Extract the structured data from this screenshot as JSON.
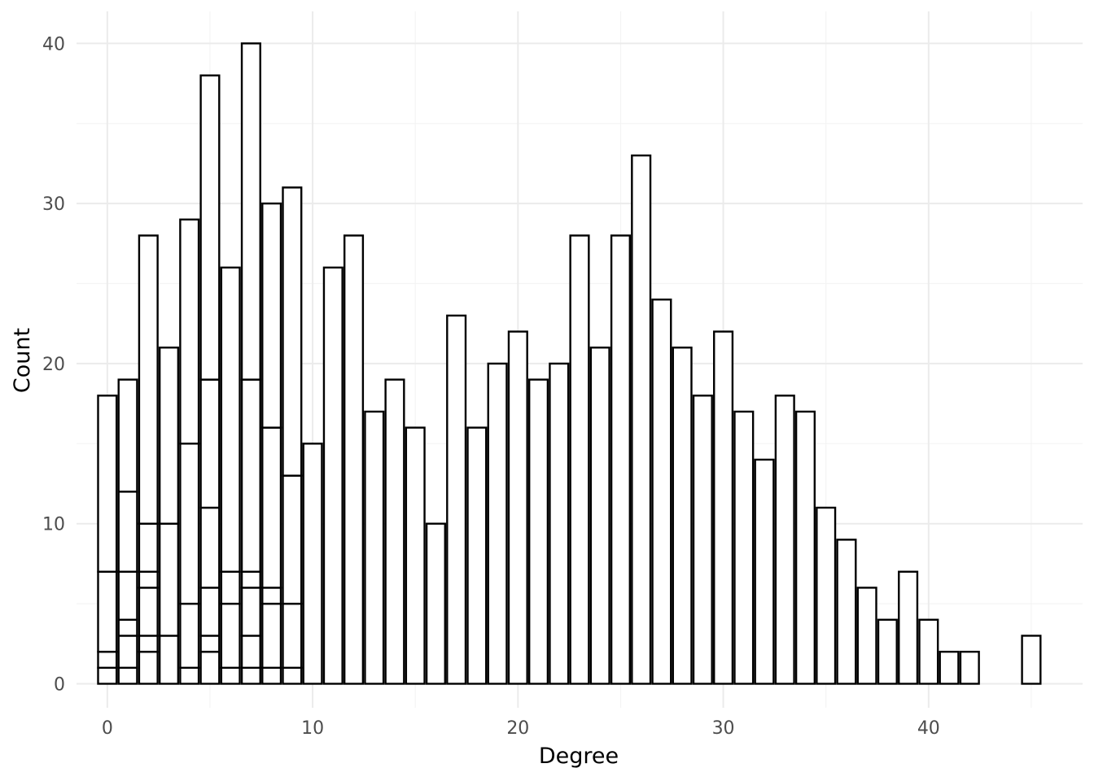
{
  "chart_data": {
    "type": "bar",
    "subtype": "stacked histogram",
    "title": "",
    "xlabel": "Degree",
    "ylabel": "Count",
    "xlim": [
      -1.5,
      47.5
    ],
    "ylim": [
      -1.5,
      42
    ],
    "x_ticks": [
      0,
      10,
      20,
      30,
      40
    ],
    "y_ticks": [
      0,
      10,
      20,
      30,
      40
    ],
    "grid": true,
    "legend": "none",
    "colors": {
      "bar_fill": "#ffffff",
      "bar_stroke": "#000000",
      "grid_major": "#ebebeb",
      "grid_minor": "#f4f4f4",
      "tick_text": "#4d4d4d"
    },
    "bins": [
      {
        "x": 0,
        "boundaries": [
          1,
          2,
          7,
          18
        ]
      },
      {
        "x": 1,
        "boundaries": [
          1,
          3,
          4,
          7,
          12,
          19
        ]
      },
      {
        "x": 2,
        "boundaries": [
          2,
          3,
          6,
          7,
          10,
          28
        ]
      },
      {
        "x": 3,
        "boundaries": [
          3,
          10,
          21
        ]
      },
      {
        "x": 4,
        "boundaries": [
          1,
          5,
          15,
          29
        ]
      },
      {
        "x": 5,
        "boundaries": [
          2,
          3,
          6,
          11,
          19,
          38
        ]
      },
      {
        "x": 6,
        "boundaries": [
          1,
          5,
          7,
          26
        ]
      },
      {
        "x": 7,
        "boundaries": [
          1,
          3,
          6,
          7,
          19,
          40
        ]
      },
      {
        "x": 8,
        "boundaries": [
          1,
          5,
          6,
          16,
          30
        ]
      },
      {
        "x": 9,
        "boundaries": [
          1,
          5,
          13,
          31
        ]
      },
      {
        "x": 10,
        "boundaries": [
          15
        ]
      },
      {
        "x": 11,
        "boundaries": [
          26
        ]
      },
      {
        "x": 12,
        "boundaries": [
          28
        ]
      },
      {
        "x": 13,
        "boundaries": [
          17
        ]
      },
      {
        "x": 14,
        "boundaries": [
          19
        ]
      },
      {
        "x": 15,
        "boundaries": [
          16
        ]
      },
      {
        "x": 16,
        "boundaries": [
          10
        ]
      },
      {
        "x": 17,
        "boundaries": [
          23
        ]
      },
      {
        "x": 18,
        "boundaries": [
          16
        ]
      },
      {
        "x": 19,
        "boundaries": [
          20
        ]
      },
      {
        "x": 20,
        "boundaries": [
          22
        ]
      },
      {
        "x": 21,
        "boundaries": [
          19
        ]
      },
      {
        "x": 22,
        "boundaries": [
          20
        ]
      },
      {
        "x": 23,
        "boundaries": [
          28
        ]
      },
      {
        "x": 24,
        "boundaries": [
          21
        ]
      },
      {
        "x": 25,
        "boundaries": [
          28
        ]
      },
      {
        "x": 26,
        "boundaries": [
          33
        ]
      },
      {
        "x": 27,
        "boundaries": [
          24
        ]
      },
      {
        "x": 28,
        "boundaries": [
          21
        ]
      },
      {
        "x": 29,
        "boundaries": [
          18
        ]
      },
      {
        "x": 30,
        "boundaries": [
          22
        ]
      },
      {
        "x": 31,
        "boundaries": [
          17
        ]
      },
      {
        "x": 32,
        "boundaries": [
          14
        ]
      },
      {
        "x": 33,
        "boundaries": [
          18
        ]
      },
      {
        "x": 34,
        "boundaries": [
          17
        ]
      },
      {
        "x": 35,
        "boundaries": [
          11
        ]
      },
      {
        "x": 36,
        "boundaries": [
          9
        ]
      },
      {
        "x": 37,
        "boundaries": [
          6
        ]
      },
      {
        "x": 38,
        "boundaries": [
          4
        ]
      },
      {
        "x": 39,
        "boundaries": [
          7
        ]
      },
      {
        "x": 40,
        "boundaries": [
          4
        ]
      },
      {
        "x": 41,
        "boundaries": [
          2
        ]
      },
      {
        "x": 42,
        "boundaries": [
          2
        ]
      },
      {
        "x": 45,
        "boundaries": [
          3
        ]
      }
    ]
  }
}
